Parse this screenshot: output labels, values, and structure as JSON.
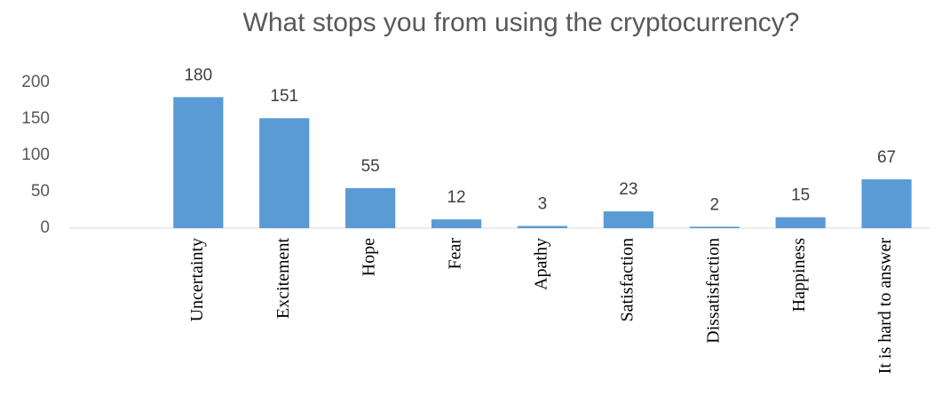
{
  "chart_data": {
    "type": "bar",
    "title": "What stops you from using the cryptocurrency?",
    "categories": [
      null,
      "Uncertainty",
      "Excitement",
      "Hope",
      "Fear",
      "Apathy",
      "Satisfaction",
      "Dissatisfaction",
      "Happiness",
      "It is hard to answer"
    ],
    "values": [
      null,
      180,
      151,
      55,
      12,
      3,
      23,
      2,
      15,
      67
    ],
    "color": "#5b9bd5",
    "ylim": [
      0,
      200
    ],
    "yticks": [
      0,
      50,
      100,
      150,
      200
    ],
    "grid": false
  }
}
